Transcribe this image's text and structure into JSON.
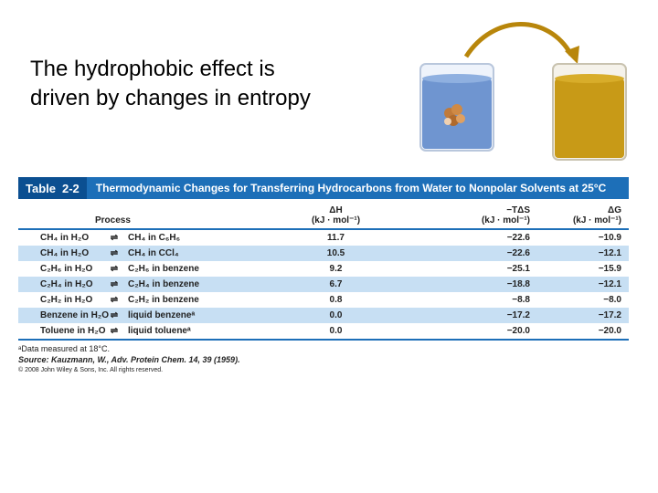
{
  "title": "The hydrophobic effect is\ndriven by changes in entropy",
  "table": {
    "label": "Table",
    "number": "2-2",
    "caption": "Thermodynamic Changes for Transferring Hydrocarbons from Water to Nonpolar Solvents at 25°C",
    "headers": {
      "process": "Process",
      "dh": "ΔH",
      "dh_units": "(kJ · mol⁻¹)",
      "tds": "−TΔS",
      "tds_units": "(kJ · mol⁻¹)",
      "dg": "ΔG",
      "dg_units": "(kJ · mol⁻¹)"
    },
    "rows": [
      {
        "from": "CH₄ in H₂O",
        "arrow": "⇌",
        "to": "CH₄ in C₆H₆",
        "dh": "11.7",
        "tds": "−22.6",
        "dg": "−10.9"
      },
      {
        "from": "CH₄ in H₂O",
        "arrow": "⇌",
        "to": "CH₄ in CCl₄",
        "dh": "10.5",
        "tds": "−22.6",
        "dg": "−12.1"
      },
      {
        "from": "C₂H₆ in H₂O",
        "arrow": "⇌",
        "to": "C₂H₆ in benzene",
        "dh": "9.2",
        "tds": "−25.1",
        "dg": "−15.9"
      },
      {
        "from": "C₂H₄ in H₂O",
        "arrow": "⇌",
        "to": "C₂H₄ in benzene",
        "dh": "6.7",
        "tds": "−18.8",
        "dg": "−12.1"
      },
      {
        "from": "C₂H₂ in H₂O",
        "arrow": "⇌",
        "to": "C₂H₂ in benzene",
        "dh": "0.8",
        "tds": "−8.8",
        "dg": "−8.0"
      },
      {
        "from": "Benzene in H₂O",
        "arrow": "⇌",
        "to": "liquid benzeneᵃ",
        "dh": "0.0",
        "tds": "−17.2",
        "dg": "−17.2"
      },
      {
        "from": "Toluene in H₂O",
        "arrow": "⇌",
        "to": "liquid tolueneᵃ",
        "dh": "0.0",
        "tds": "−20.0",
        "dg": "−20.0"
      }
    ],
    "footnote": "ᵃData measured at 18°C.",
    "source": "Source: Kauzmann, W., Adv. Protein Chem. 14, 39 (1959).",
    "copyright": "© 2008 John Wiley & Sons, Inc. All rights reserved."
  },
  "colors": {
    "table_header_blue": "#1d6fb8",
    "row_highlight": "#c7dff3",
    "water": "#6f95d0",
    "nonpolar_solvent": "#c89a17",
    "arrow": "#b8860b"
  }
}
